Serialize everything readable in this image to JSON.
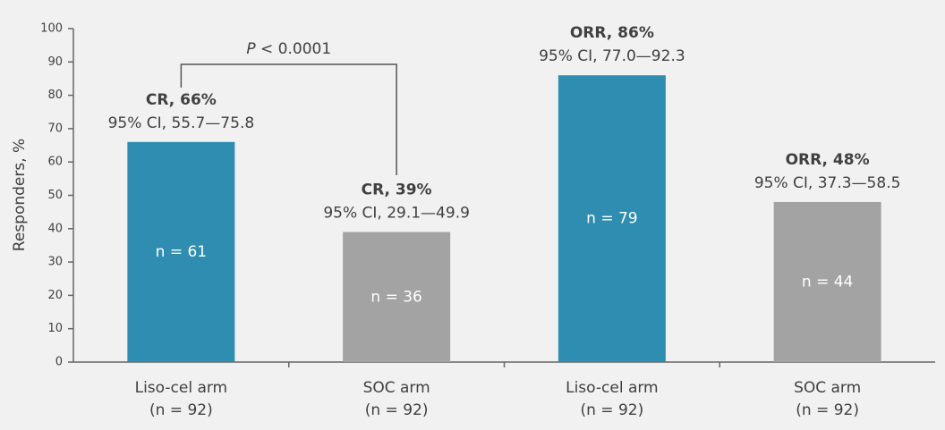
{
  "chart_data": {
    "type": "bar",
    "y_label": "Responders, %",
    "categories": [
      "Liso-cel arm",
      "SOC arm",
      "Liso-cel arm",
      "SOC arm"
    ],
    "category_sublabels": [
      "(n = 92)",
      "(n = 92)",
      "(n = 92)",
      "(n = 92)"
    ],
    "values": [
      66,
      39,
      86,
      48
    ],
    "value_labels": [
      "CR, 66%",
      "CR, 39%",
      "ORR, 86%",
      "ORR, 48%"
    ],
    "ci_labels": [
      "95% CI, 55.7—75.8",
      "95% CI, 29.1—49.9",
      "95% CI, 77.0—92.3",
      "95% CI, 37.3—58.5"
    ],
    "n_labels": [
      "n = 61",
      "n = 36",
      "n = 79",
      "n = 44"
    ],
    "colors": [
      "#2e8db0",
      "#a3a3a3",
      "#2e8db0",
      "#a3a3a3"
    ],
    "annotation": "P < 0.0001",
    "ylim": [
      0,
      100
    ],
    "yticks": [
      0,
      10,
      20,
      30,
      40,
      50,
      60,
      70,
      80,
      90,
      100
    ],
    "grid": false
  }
}
